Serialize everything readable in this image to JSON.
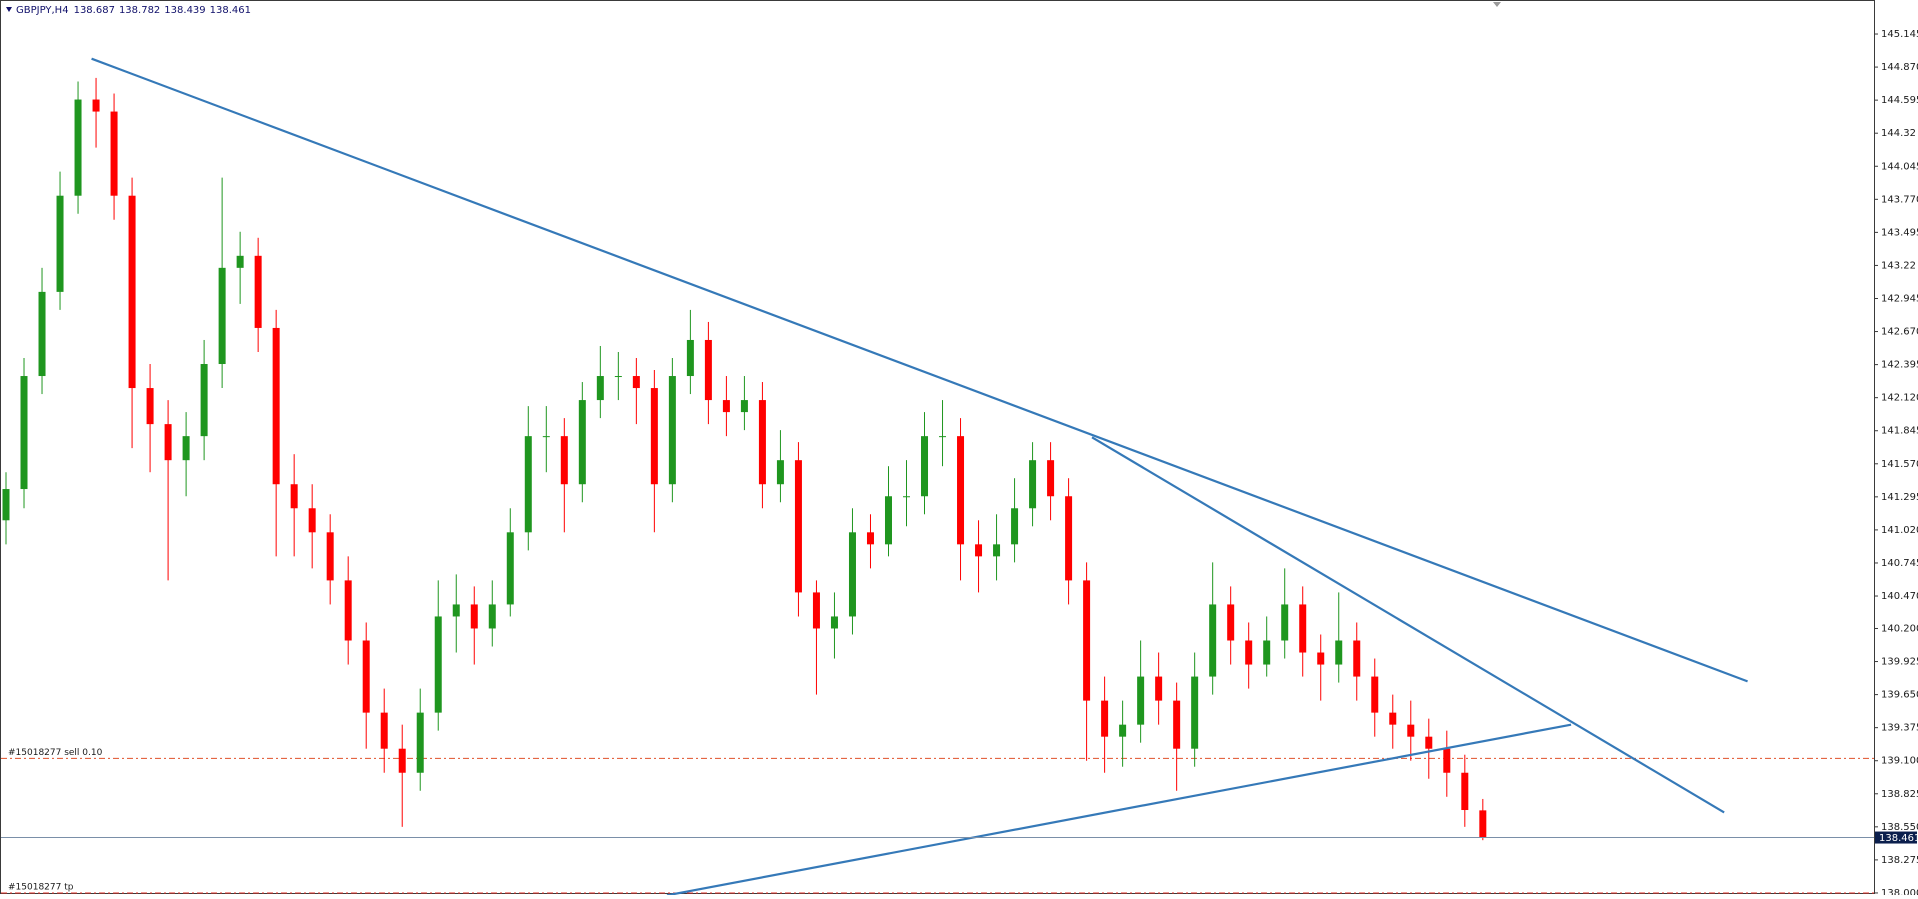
{
  "chart_data": {
    "type": "candlestick",
    "symbol": "GBPJPY,H4",
    "open": [
      141.1,
      141.36,
      142.3,
      143.0,
      143.8,
      144.6,
      144.5,
      143.8,
      142.2,
      141.9,
      141.6,
      141.8,
      142.4,
      143.2,
      143.3,
      142.7,
      141.4,
      141.2,
      141.0,
      140.6,
      140.1,
      139.5,
      139.2,
      139.0,
      139.5,
      140.3,
      140.4,
      140.2,
      140.4,
      141.0,
      141.8,
      141.8,
      141.4,
      142.1,
      142.3,
      142.3,
      142.2,
      141.4,
      142.3,
      142.6,
      142.1,
      142.0,
      142.1,
      141.4,
      141.6,
      140.5,
      140.2,
      140.3,
      141.0,
      140.9,
      141.3,
      141.3,
      141.8,
      141.8,
      140.9,
      140.8,
      140.9,
      141.2,
      141.6,
      141.3,
      140.6,
      139.6,
      139.3,
      139.4,
      139.8,
      139.6,
      139.2,
      139.8,
      140.4,
      140.1,
      139.9,
      140.1,
      140.4,
      140.0,
      139.9,
      140.1,
      139.8,
      139.5,
      139.4,
      139.3,
      139.2,
      139.0,
      138.687
    ],
    "high": [
      141.5,
      142.45,
      143.2,
      144.0,
      144.75,
      144.78,
      144.65,
      143.95,
      142.4,
      142.1,
      142.0,
      142.6,
      143.95,
      143.5,
      143.45,
      142.85,
      141.65,
      141.4,
      141.15,
      140.8,
      140.25,
      139.7,
      139.4,
      139.7,
      140.6,
      140.65,
      140.55,
      140.6,
      141.2,
      142.05,
      142.05,
      141.95,
      142.25,
      142.55,
      142.5,
      142.45,
      142.35,
      142.45,
      142.85,
      142.75,
      142.3,
      142.3,
      142.25,
      141.85,
      141.75,
      140.6,
      140.5,
      141.2,
      141.15,
      141.55,
      141.6,
      142.0,
      142.1,
      141.95,
      141.1,
      141.15,
      141.45,
      141.75,
      141.75,
      141.45,
      140.75,
      139.8,
      139.6,
      140.1,
      140.0,
      139.75,
      140.0,
      140.75,
      140.55,
      140.25,
      140.3,
      140.7,
      140.55,
      140.15,
      140.5,
      140.25,
      139.95,
      139.65,
      139.6,
      139.45,
      139.35,
      139.15,
      138.782
    ],
    "low": [
      140.9,
      141.2,
      142.15,
      142.85,
      143.65,
      144.2,
      143.6,
      141.7,
      141.5,
      140.6,
      141.3,
      141.6,
      142.2,
      142.9,
      142.5,
      140.8,
      140.8,
      140.7,
      140.4,
      139.9,
      139.2,
      139.0,
      138.55,
      138.85,
      139.35,
      140.0,
      139.9,
      140.05,
      140.3,
      140.85,
      141.5,
      141.0,
      141.25,
      141.95,
      142.1,
      141.9,
      141.0,
      141.25,
      142.15,
      141.9,
      141.8,
      141.85,
      141.2,
      141.25,
      140.3,
      139.65,
      139.95,
      140.15,
      140.7,
      140.8,
      141.05,
      141.15,
      141.55,
      140.6,
      140.5,
      140.6,
      140.75,
      141.05,
      141.1,
      140.4,
      139.1,
      139.0,
      139.05,
      139.25,
      139.4,
      138.85,
      139.05,
      139.65,
      139.9,
      139.7,
      139.8,
      139.95,
      139.8,
      139.6,
      139.75,
      139.6,
      139.3,
      139.2,
      139.1,
      138.95,
      138.8,
      138.55,
      138.439
    ],
    "close": [
      141.36,
      142.3,
      143.0,
      143.8,
      144.6,
      144.5,
      143.8,
      142.2,
      141.9,
      141.6,
      141.8,
      142.4,
      143.2,
      143.3,
      142.7,
      141.4,
      141.2,
      141.0,
      140.6,
      140.1,
      139.5,
      139.2,
      139.0,
      139.5,
      140.3,
      140.4,
      140.2,
      140.4,
      141.0,
      141.8,
      141.8,
      141.4,
      142.1,
      142.3,
      142.3,
      142.2,
      141.4,
      142.3,
      142.6,
      142.1,
      142.0,
      142.1,
      141.4,
      141.6,
      140.5,
      140.2,
      140.3,
      141.0,
      140.9,
      141.3,
      141.3,
      141.8,
      141.8,
      140.9,
      140.8,
      140.9,
      141.2,
      141.6,
      141.3,
      140.6,
      139.6,
      139.3,
      139.4,
      139.8,
      139.6,
      139.2,
      139.8,
      140.4,
      140.1,
      139.9,
      140.1,
      140.4,
      140.0,
      139.9,
      140.1,
      139.8,
      139.5,
      139.4,
      139.3,
      139.2,
      139.0,
      138.69,
      138.461
    ],
    "bull_color": "#1f961f",
    "bear_color": "#ff0000",
    "ylim": [
      137.983,
      145.428
    ],
    "yticks": [
      145.145,
      {
        "value": 144.87,
        "label": "144.870"
      },
      144.595,
      144.32,
      144.045,
      {
        "value": 143.77,
        "label": "143.770"
      },
      143.495,
      143.22,
      142.945,
      {
        "value": 142.67,
        "label": "142.670"
      },
      142.395,
      {
        "value": 142.12,
        "label": "142.120"
      },
      141.845,
      {
        "value": 141.57,
        "label": "141.570"
      },
      141.295,
      {
        "value": 141.02,
        "label": "141.020"
      },
      140.745,
      {
        "value": 140.47,
        "label": "140.470"
      },
      {
        "value": 140.2,
        "label": "140.200"
      },
      139.925,
      {
        "value": 139.65,
        "label": "139.650"
      },
      139.375,
      {
        "value": 139.1,
        "label": "139.100"
      },
      138.825,
      {
        "value": 138.55,
        "label": "138.550"
      },
      138.275,
      {
        "value": 138.0,
        "label": "138.000"
      }
    ],
    "trendlines": [
      {
        "from": [
          4.75,
          144.94
        ],
        "to": [
          96.7,
          139.76
        ],
        "color": "#3579b8"
      },
      {
        "from": [
          60.3,
          141.79
        ],
        "to": [
          95.4,
          138.67
        ],
        "color": "#3579b8"
      },
      {
        "from": [
          36.7,
          137.98
        ],
        "to": [
          86.9,
          139.4
        ],
        "color": "#3579b8"
      }
    ],
    "levels": [
      {
        "value": 139.12,
        "label": "#15018277 sell 0.10",
        "color": "#e0502a"
      },
      {
        "value": 138.0,
        "label": "#15018277 tp",
        "color": "#e0302a"
      }
    ],
    "price_line_color": "#7a8fa8",
    "grid": false
  }
}
